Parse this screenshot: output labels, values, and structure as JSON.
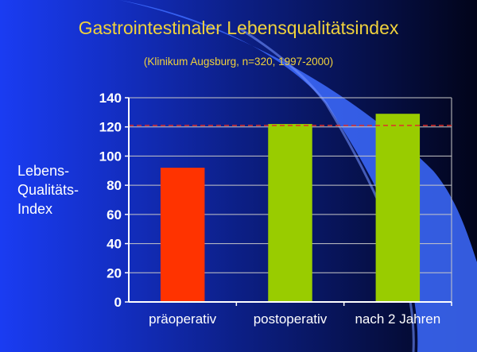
{
  "slide": {
    "title": "Gastrointestinaler Lebensqualitätsindex",
    "subtitle": "(Klinikum Augsburg, n=320, 1997-2000)",
    "ylabel_lines": [
      "Lebens-",
      "Qualitäts-",
      "Index"
    ]
  },
  "colors": {
    "text": "#ffffff",
    "title": "#f0d23c",
    "gridline": "#c8c8c8",
    "reference_line": "#e0302a",
    "bar_pre": "#ff3300",
    "bar_post": "#99cc00"
  },
  "chart_data": {
    "type": "bar",
    "categories": [
      "präoperativ",
      "postoperativ",
      "nach 2 Jahren"
    ],
    "values": [
      92,
      122,
      129
    ],
    "bar_colors": [
      "#ff3300",
      "#99cc00",
      "#99cc00"
    ],
    "title": "Gastrointestinaler Lebensqualitätsindex",
    "subtitle": "(Klinikum Augsburg, n=320, 1997-2000)",
    "xlabel": "",
    "ylabel": "Lebens-Qualitäts-Index",
    "ylim": [
      0,
      140
    ],
    "yticks": [
      0,
      20,
      40,
      60,
      80,
      100,
      120,
      140
    ],
    "reference_line": 121,
    "grid": true,
    "legend": "none"
  }
}
